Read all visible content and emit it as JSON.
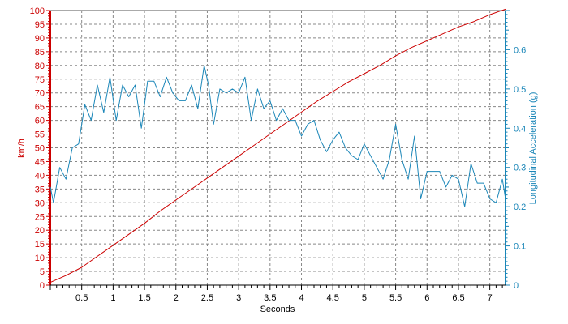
{
  "chart_data": {
    "type": "line",
    "xlabel": "Seconds",
    "y_left_label": "km/h",
    "y_right_label": "Longitudinal Acceleration (g)",
    "xlim": [
      0,
      7.25
    ],
    "ylim_left": [
      0,
      100
    ],
    "ylim_right": [
      0,
      0.7
    ],
    "x_ticks": [
      0.5,
      1,
      1.5,
      2,
      2.5,
      3,
      3.5,
      4,
      4.5,
      5,
      5.5,
      6,
      6.5,
      7
    ],
    "x_tick_labels": [
      "0.5",
      "1",
      "1.5",
      "2",
      "2.5",
      "3",
      "3.5",
      "4",
      "4.5",
      "5",
      "5.5",
      "6",
      "6.5",
      "7"
    ],
    "y_left_ticks": [
      0,
      5,
      10,
      15,
      20,
      25,
      30,
      35,
      40,
      45,
      50,
      55,
      60,
      65,
      70,
      75,
      80,
      85,
      90,
      95,
      100
    ],
    "y_left_tick_labels": [
      "0",
      "5",
      "10",
      "15",
      "20",
      "25",
      "30",
      "35",
      "40",
      "45",
      "50",
      "55",
      "60",
      "65",
      "70",
      "75",
      "80",
      "85",
      "90",
      "95",
      "100"
    ],
    "y_right_ticks": [
      0,
      0.1,
      0.2,
      0.3,
      0.4,
      0.5,
      0.6
    ],
    "y_right_tick_labels": [
      "0",
      "0.1",
      "0.2",
      "0.3",
      "0.4",
      "0.5",
      "0.6"
    ],
    "grid": true,
    "colors": {
      "speed": "#cc0000",
      "accel": "#1a86b8",
      "grid": "#888888",
      "left_axis": "#cc0000",
      "right_axis": "#1a86b8"
    },
    "series": [
      {
        "axis": "left",
        "color": "#cc0000",
        "x": [
          0,
          0.25,
          0.5,
          0.75,
          1,
          1.25,
          1.5,
          1.75,
          2,
          2.25,
          2.5,
          2.75,
          3,
          3.25,
          3.5,
          3.75,
          4,
          4.25,
          4.5,
          4.75,
          5,
          5.25,
          5.5,
          5.75,
          6,
          6.25,
          6.5,
          6.75,
          7,
          7.25
        ],
        "y": [
          1,
          3.5,
          6.5,
          10.5,
          14.5,
          18.5,
          22.5,
          27,
          31,
          35,
          39,
          43,
          47,
          51,
          55,
          59,
          63,
          67,
          70.5,
          74,
          77,
          80,
          83.5,
          86.5,
          89,
          91.5,
          94,
          96,
          98.5,
          100.5
        ]
      },
      {
        "axis": "right",
        "color": "#1a86b8",
        "x": [
          0,
          0.05,
          0.15,
          0.25,
          0.35,
          0.45,
          0.55,
          0.65,
          0.75,
          0.85,
          0.95,
          1.05,
          1.15,
          1.25,
          1.35,
          1.45,
          1.55,
          1.65,
          1.75,
          1.85,
          1.95,
          2.05,
          2.15,
          2.25,
          2.35,
          2.45,
          2.52,
          2.6,
          2.7,
          2.8,
          2.9,
          3.0,
          3.1,
          3.2,
          3.3,
          3.4,
          3.5,
          3.6,
          3.7,
          3.8,
          3.9,
          4.0,
          4.1,
          4.2,
          4.3,
          4.4,
          4.5,
          4.6,
          4.7,
          4.8,
          4.9,
          5.0,
          5.1,
          5.2,
          5.3,
          5.4,
          5.5,
          5.6,
          5.7,
          5.8,
          5.9,
          6.0,
          6.1,
          6.2,
          6.3,
          6.4,
          6.5,
          6.6,
          6.7,
          6.8,
          6.9,
          7.0,
          7.1,
          7.2,
          7.25
        ],
        "y": [
          0.25,
          0.21,
          0.3,
          0.27,
          0.35,
          0.36,
          0.46,
          0.42,
          0.51,
          0.44,
          0.53,
          0.42,
          0.51,
          0.48,
          0.51,
          0.4,
          0.52,
          0.52,
          0.48,
          0.53,
          0.49,
          0.47,
          0.47,
          0.51,
          0.45,
          0.56,
          0.51,
          0.41,
          0.5,
          0.49,
          0.5,
          0.49,
          0.53,
          0.42,
          0.5,
          0.45,
          0.47,
          0.42,
          0.45,
          0.42,
          0.42,
          0.38,
          0.41,
          0.42,
          0.37,
          0.34,
          0.37,
          0.39,
          0.35,
          0.33,
          0.32,
          0.36,
          0.33,
          0.3,
          0.27,
          0.32,
          0.41,
          0.32,
          0.27,
          0.38,
          0.22,
          0.29,
          0.29,
          0.29,
          0.25,
          0.28,
          0.27,
          0.2,
          0.31,
          0.26,
          0.26,
          0.22,
          0.21,
          0.27,
          0.22
        ]
      }
    ]
  }
}
